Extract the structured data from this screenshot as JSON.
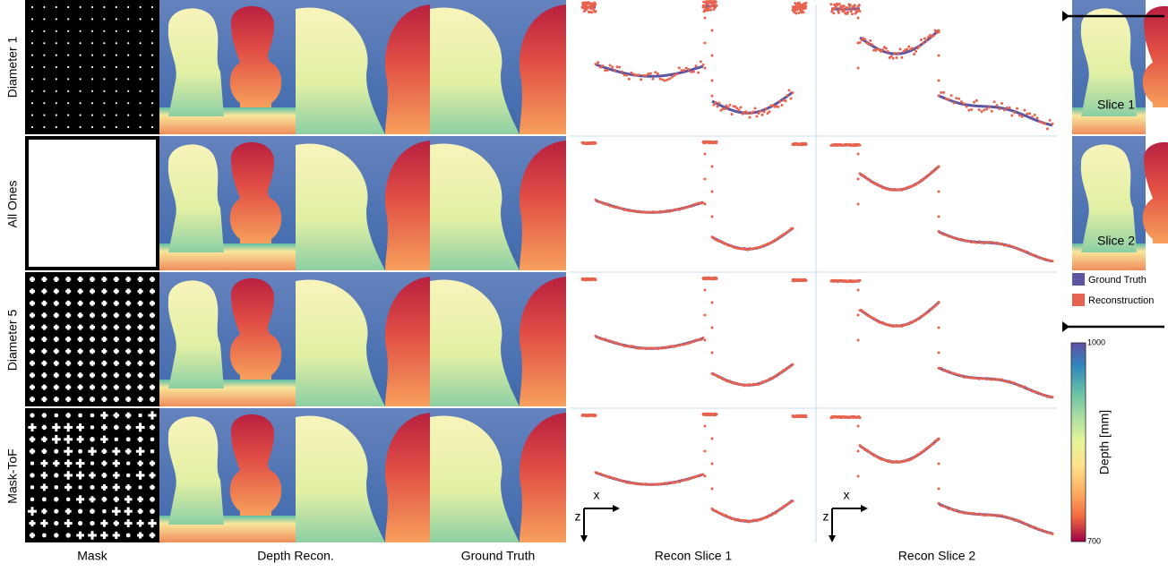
{
  "row_labels": [
    "Diameter 1",
    "All Ones",
    "Diameter 5",
    "Mask-ToF"
  ],
  "column_labels": [
    "Mask",
    "Depth Recon.",
    "Ground Truth",
    "Recon Slice 1",
    "Recon Slice 2"
  ],
  "slice_thumbnails": [
    "Slice 1",
    "Slice 2"
  ],
  "legend": [
    "Ground Truth",
    "Reconstruction"
  ],
  "colorbar": {
    "label": "Depth [mm]",
    "max": "1000",
    "min": "700"
  },
  "axis_labels": {
    "x": "x",
    "z": "z"
  }
}
